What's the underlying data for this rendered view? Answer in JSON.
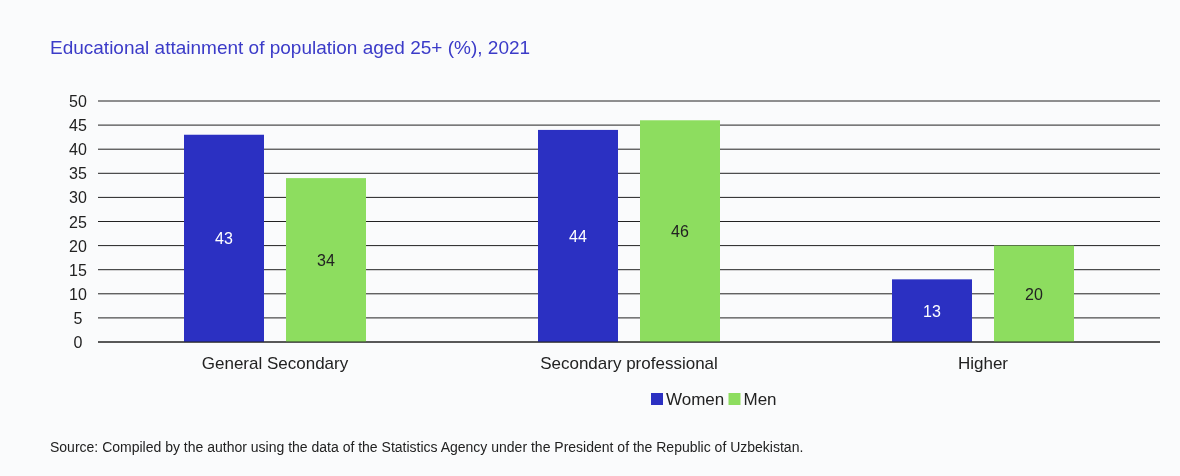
{
  "chart_data": {
    "type": "bar",
    "title": "Educational attainment of population aged 25+ (%), 2021",
    "categories": [
      "General Secondary",
      "Secondary professional",
      "Higher"
    ],
    "series": [
      {
        "name": "Women",
        "color": "#2b30c2",
        "values": [
          43,
          44,
          13
        ]
      },
      {
        "name": "Men",
        "color": "#8ddd5f",
        "values": [
          34,
          46,
          20
        ]
      }
    ],
    "ylim": [
      0,
      50
    ],
    "yticks": [
      0,
      5,
      10,
      15,
      20,
      25,
      30,
      35,
      40,
      45,
      50
    ],
    "grid": "y",
    "legend": "bottom",
    "data_labels": true,
    "annotations": [
      "Source: Compiled by the author using the data of the Statistics Agency under the President of the Republic of Uzbekistan."
    ]
  }
}
